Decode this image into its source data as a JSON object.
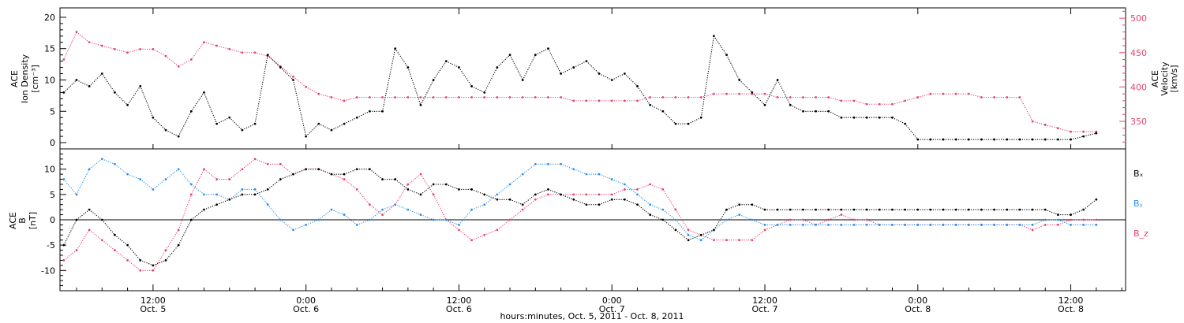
{
  "chart_data": [
    {
      "type": "scatter",
      "panel": "density-velocity",
      "ylabel_left_lines": [
        "ACE",
        "Ion Density",
        "[cm⁻³]"
      ],
      "ylabel_right_lines": [
        "ACE",
        "Velocity",
        "[km/s]"
      ],
      "y_left_ticks": [
        "0",
        "5",
        "10",
        "15",
        "20"
      ],
      "y_right_ticks": [
        "350",
        "400",
        "450",
        "500"
      ],
      "ylim_left": [
        -1,
        21.5
      ],
      "ylim_right": [
        310,
        515
      ],
      "x_hours_range": [
        4.7,
        88.3
      ],
      "colors": {
        "density": "#000000",
        "velocity": "#e8426a"
      },
      "series": [
        {
          "name": "",
          "axis": "left",
          "color": "#000000",
          "x": [
            5,
            6,
            7,
            8,
            9,
            10,
            11,
            12,
            13,
            14,
            15,
            16,
            17,
            18,
            19,
            20,
            21,
            22,
            23,
            24,
            25,
            26,
            27,
            28,
            29,
            30,
            31,
            32,
            33,
            34,
            35,
            36,
            37,
            38,
            39,
            40,
            41,
            42,
            43,
            44,
            45,
            46,
            47,
            48,
            49,
            50,
            51,
            52,
            53,
            54,
            55,
            56,
            57,
            58,
            59,
            60,
            61,
            62,
            63,
            64,
            65,
            66,
            67,
            68,
            69,
            70,
            71,
            72,
            73,
            74,
            75,
            76,
            77,
            78,
            79,
            80,
            81,
            82,
            83,
            84,
            85,
            86
          ],
          "y": [
            8,
            10,
            9,
            11,
            8,
            6,
            9,
            4,
            2,
            1,
            5,
            8,
            3,
            4,
            2,
            3,
            14,
            12,
            10,
            1,
            3,
            2,
            3,
            4,
            5,
            5,
            15,
            12,
            6,
            10,
            13,
            12,
            9,
            8,
            12,
            14,
            10,
            14,
            15,
            11,
            12,
            13,
            11,
            10,
            11,
            9,
            6,
            5,
            3,
            3,
            4,
            17,
            14,
            10,
            8,
            6,
            10,
            6,
            5,
            5,
            5,
            4,
            4,
            4,
            4,
            4,
            3,
            0.5,
            0.5,
            0.5,
            0.5,
            0.5,
            0.5,
            0.5,
            0.5,
            0.5,
            0.5,
            0.5,
            0.5,
            0.5,
            1,
            1.5
          ]
        },
        {
          "name": "",
          "axis": "right",
          "color": "#e8426a",
          "x": [
            5,
            6,
            7,
            8,
            9,
            10,
            11,
            12,
            13,
            14,
            15,
            16,
            17,
            18,
            19,
            20,
            21,
            22,
            23,
            24,
            25,
            26,
            27,
            28,
            29,
            30,
            31,
            32,
            33,
            34,
            35,
            36,
            37,
            38,
            39,
            40,
            41,
            42,
            43,
            44,
            45,
            46,
            47,
            48,
            49,
            50,
            51,
            52,
            53,
            54,
            55,
            56,
            57,
            58,
            59,
            60,
            61,
            62,
            63,
            64,
            65,
            66,
            67,
            68,
            69,
            70,
            71,
            72,
            73,
            74,
            75,
            76,
            77,
            78,
            79,
            80,
            81,
            82,
            83,
            84,
            85,
            86
          ],
          "y": [
            440,
            480,
            465,
            460,
            455,
            450,
            455,
            455,
            445,
            430,
            440,
            465,
            460,
            455,
            450,
            450,
            445,
            430,
            415,
            400,
            390,
            385,
            380,
            385,
            385,
            385,
            385,
            385,
            385,
            385,
            385,
            385,
            385,
            385,
            385,
            385,
            385,
            385,
            385,
            385,
            380,
            380,
            380,
            380,
            380,
            380,
            385,
            385,
            385,
            385,
            385,
            390,
            390,
            390,
            390,
            390,
            385,
            385,
            385,
            385,
            385,
            380,
            380,
            375,
            375,
            375,
            380,
            385,
            390,
            390,
            390,
            390,
            385,
            385,
            385,
            385,
            350,
            345,
            340,
            335,
            335,
            335
          ]
        }
      ]
    },
    {
      "type": "scatter",
      "panel": "magnetic-field",
      "ylabel_left_lines": [
        "ACE",
        "B",
        "[nT]"
      ],
      "y_left_ticks": [
        "-10",
        "-5",
        "0",
        "5",
        "10"
      ],
      "ylim_left": [
        -14,
        14
      ],
      "x_hours_range": [
        4.7,
        88.3
      ],
      "colors": {
        "bx": "#000000",
        "by": "#2a8fe8",
        "bz": "#e8426a"
      },
      "legend_labels": [
        "Bₓ",
        "Bᵧ",
        "B_z"
      ],
      "series": [
        {
          "name": "Bₓ",
          "color": "#000000",
          "x": [
            5,
            6,
            7,
            8,
            9,
            10,
            11,
            12,
            13,
            14,
            15,
            16,
            17,
            18,
            19,
            20,
            21,
            22,
            23,
            24,
            25,
            26,
            27,
            28,
            29,
            30,
            31,
            32,
            33,
            34,
            35,
            36,
            37,
            38,
            39,
            40,
            41,
            42,
            43,
            44,
            45,
            46,
            47,
            48,
            49,
            50,
            51,
            52,
            53,
            54,
            55,
            56,
            57,
            58,
            59,
            60,
            61,
            62,
            63,
            64,
            65,
            66,
            67,
            68,
            69,
            70,
            71,
            72,
            73,
            74,
            75,
            76,
            77,
            78,
            79,
            80,
            81,
            82,
            83,
            84,
            85,
            86
          ],
          "y": [
            -5,
            0,
            2,
            0,
            -3,
            -5,
            -8,
            -9,
            -8,
            -5,
            0,
            2,
            3,
            4,
            5,
            5,
            6,
            8,
            9,
            10,
            10,
            9,
            9,
            10,
            10,
            8,
            8,
            6,
            5,
            7,
            7,
            6,
            6,
            5,
            4,
            4,
            3,
            5,
            6,
            5,
            4,
            3,
            3,
            4,
            4,
            3,
            1,
            0,
            -2,
            -4,
            -3,
            -2,
            2,
            3,
            3,
            2,
            2,
            2,
            2,
            2,
            2,
            2,
            2,
            2,
            2,
            2,
            2,
            2,
            2,
            2,
            2,
            2,
            2,
            2,
            2,
            2,
            2,
            2,
            1,
            1,
            2,
            4
          ]
        },
        {
          "name": "Bᵧ",
          "color": "#2a8fe8",
          "x": [
            5,
            6,
            7,
            8,
            9,
            10,
            11,
            12,
            13,
            14,
            15,
            16,
            17,
            18,
            19,
            20,
            21,
            22,
            23,
            24,
            25,
            26,
            27,
            28,
            29,
            30,
            31,
            32,
            33,
            34,
            35,
            36,
            37,
            38,
            39,
            40,
            41,
            42,
            43,
            44,
            45,
            46,
            47,
            48,
            49,
            50,
            51,
            52,
            53,
            54,
            55,
            56,
            57,
            58,
            59,
            60,
            61,
            62,
            63,
            64,
            65,
            66,
            67,
            68,
            69,
            70,
            71,
            72,
            73,
            74,
            75,
            76,
            77,
            78,
            79,
            80,
            81,
            82,
            83,
            84,
            85,
            86
          ],
          "y": [
            8,
            5,
            10,
            12,
            11,
            9,
            8,
            6,
            8,
            10,
            7,
            5,
            5,
            4,
            6,
            6,
            3,
            0,
            -2,
            -1,
            0,
            2,
            1,
            -1,
            0,
            2,
            3,
            2,
            1,
            0,
            0,
            -1,
            2,
            3,
            5,
            7,
            9,
            11,
            11,
            11,
            10,
            9,
            9,
            8,
            7,
            5,
            3,
            2,
            0,
            -3,
            -4,
            -2,
            0,
            1,
            0,
            -1,
            -1,
            -1,
            -1,
            -1,
            -1,
            -1,
            -1,
            -1,
            -1,
            -1,
            -1,
            -1,
            -1,
            -1,
            -1,
            -1,
            -1,
            -1,
            -1,
            -1,
            -1,
            0,
            0,
            -1,
            -1,
            -1
          ]
        },
        {
          "name": "B_z",
          "color": "#e8426a",
          "x": [
            5,
            6,
            7,
            8,
            9,
            10,
            11,
            12,
            13,
            14,
            15,
            16,
            17,
            18,
            19,
            20,
            21,
            22,
            23,
            24,
            25,
            26,
            27,
            28,
            29,
            30,
            31,
            32,
            33,
            34,
            35,
            36,
            37,
            38,
            39,
            40,
            41,
            42,
            43,
            44,
            45,
            46,
            47,
            48,
            49,
            50,
            51,
            52,
            53,
            54,
            55,
            56,
            57,
            58,
            59,
            60,
            61,
            62,
            63,
            64,
            65,
            66,
            67,
            68,
            69,
            70,
            71,
            72,
            73,
            74,
            75,
            76,
            77,
            78,
            79,
            80,
            81,
            82,
            83,
            84,
            85,
            86
          ],
          "y": [
            -8,
            -6,
            -2,
            -4,
            -6,
            -8,
            -10,
            -10,
            -6,
            -2,
            5,
            10,
            8,
            8,
            10,
            12,
            11,
            11,
            9,
            10,
            10,
            9,
            8,
            6,
            3,
            1,
            3,
            7,
            9,
            5,
            0,
            -2,
            -4,
            -3,
            -2,
            0,
            2,
            4,
            5,
            5,
            5,
            5,
            5,
            5,
            6,
            6,
            7,
            6,
            2,
            -2,
            -3,
            -4,
            -4,
            -4,
            -4,
            -2,
            -1,
            0,
            0,
            -1,
            0,
            1,
            0,
            0,
            -1,
            -1,
            -1,
            -1,
            -1,
            -1,
            -1,
            -1,
            -1,
            -1,
            -1,
            -1,
            -2,
            -1,
            -1,
            0,
            0,
            0
          ]
        }
      ]
    }
  ],
  "x_axis": {
    "title": "hours:minutes, Oct.  5, 2011 - Oct.  8, 2011",
    "ticks": [
      {
        "hours": 12,
        "time": "12:00",
        "date": "Oct. 5"
      },
      {
        "hours": 24,
        "time": "0:00",
        "date": "Oct. 6"
      },
      {
        "hours": 36,
        "time": "12:00",
        "date": "Oct. 6"
      },
      {
        "hours": 48,
        "time": "0:00",
        "date": "Oct. 7"
      },
      {
        "hours": 60,
        "time": "12:00",
        "date": "Oct. 7"
      },
      {
        "hours": 72,
        "time": "0:00",
        "date": "Oct. 8"
      },
      {
        "hours": 84,
        "time": "12:00",
        "date": "Oct. 8"
      }
    ]
  }
}
